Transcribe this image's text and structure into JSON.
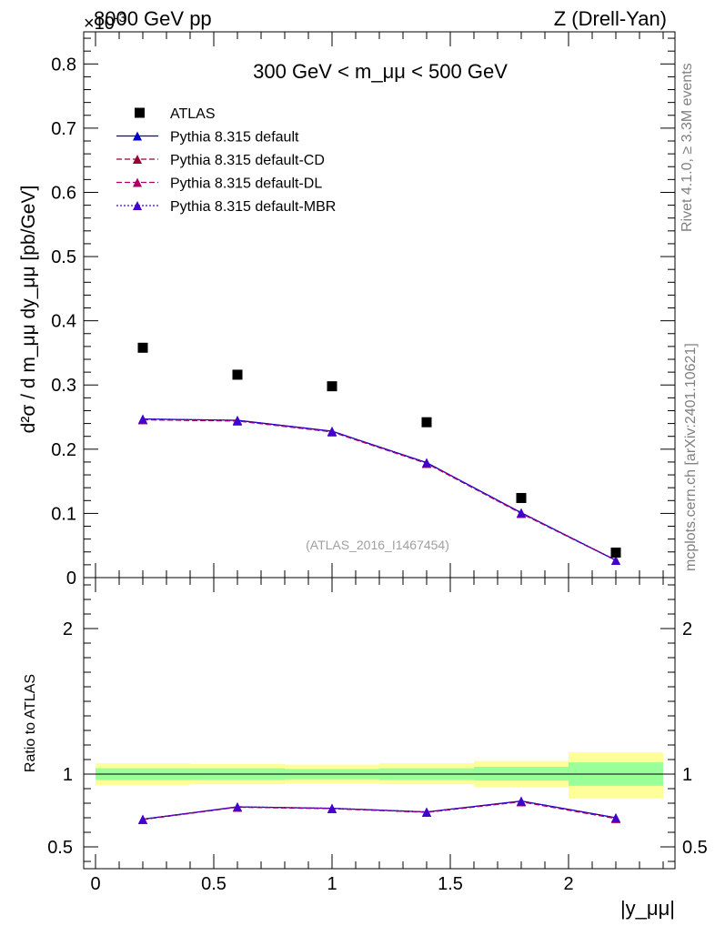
{
  "header": {
    "left": "8000 GeV pp",
    "right": "Z (Drell-Yan)",
    "exponent": "×10",
    "exponent_power": "-3"
  },
  "side_labels": {
    "rivet": "Rivet 4.1.0, ≥ 3.3M events",
    "mcplots": "mcplots.cern.ch [arXiv:2401.10621]"
  },
  "colors": {
    "data": "#000000",
    "default": "#0000cc",
    "default_cd": "#990033",
    "default_dl": "#aa0066",
    "default_mbr": "#4400cc",
    "band_inner": "#99ff99",
    "band_outer": "#ffff99"
  },
  "chart_data": [
    {
      "type": "scatter",
      "title": "300 GeV < m_μμ < 500 GeV",
      "watermark": "(ATLAS_2016_I1467454)",
      "ylabel": "d²σ / d m_μμ dy_μμ [pb/GeV]",
      "ylim": [
        0,
        0.00085
      ],
      "xlim": [
        -0.05,
        2.45
      ],
      "y_ticks": [
        "0",
        "0.1",
        "0.2",
        "0.3",
        "0.4",
        "0.5",
        "0.6",
        "0.7",
        "0.8"
      ],
      "x": [
        0.2,
        0.6,
        1.0,
        1.4,
        1.8,
        2.2
      ],
      "series": [
        {
          "name": "ATLAS",
          "marker": "square",
          "values": [
            0.000358,
            0.000316,
            0.000298,
            0.000242,
            0.000124,
            3.9e-05
          ]
        },
        {
          "name": "Pythia 8.315 default",
          "style": "solid",
          "values": [
            0.000247,
            0.000245,
            0.000228,
            0.000179,
            0.000101,
            2.7e-05
          ]
        },
        {
          "name": "Pythia 8.315 default-CD",
          "style": "dashed",
          "values": [
            0.000246,
            0.000244,
            0.000227,
            0.000178,
            0.0001,
            2.7e-05
          ]
        },
        {
          "name": "Pythia 8.315 default-DL",
          "style": "dashed",
          "values": [
            0.000246,
            0.000244,
            0.000227,
            0.000178,
            0.0001,
            2.7e-05
          ]
        },
        {
          "name": "Pythia 8.315 default-MBR",
          "style": "dotted",
          "values": [
            0.000247,
            0.000245,
            0.000228,
            0.000179,
            0.000101,
            2.7e-05
          ]
        }
      ]
    },
    {
      "type": "line",
      "ylabel": "Ratio to ATLAS",
      "xlabel": "|y_μμ|",
      "ylim": [
        0.35,
        2.35
      ],
      "y_ticks": [
        "0.5",
        "1",
        "2"
      ],
      "x_ticks": [
        "0",
        "0.5",
        "1",
        "1.5",
        "2"
      ],
      "bins": [
        [
          0.0,
          0.4
        ],
        [
          0.4,
          0.8
        ],
        [
          0.8,
          1.2
        ],
        [
          1.2,
          1.6
        ],
        [
          1.6,
          2.0
        ],
        [
          2.0,
          2.4
        ]
      ],
      "band_inner": [
        [
          0.96,
          1.04
        ],
        [
          0.96,
          1.04
        ],
        [
          0.965,
          1.035
        ],
        [
          0.96,
          1.04
        ],
        [
          0.955,
          1.05
        ],
        [
          0.92,
          1.08
        ]
      ],
      "band_outer": [
        [
          0.925,
          1.075
        ],
        [
          0.93,
          1.07
        ],
        [
          0.935,
          1.065
        ],
        [
          0.93,
          1.075
        ],
        [
          0.91,
          1.09
        ],
        [
          0.83,
          1.15
        ]
      ],
      "x": [
        0.2,
        0.6,
        1.0,
        1.4,
        1.8,
        2.2
      ],
      "series": [
        {
          "name": "Pythia 8.315 default",
          "values": [
            0.69,
            0.775,
            0.765,
            0.74,
            0.815,
            0.7
          ]
        },
        {
          "name": "Pythia 8.315 default-CD",
          "values": [
            0.688,
            0.773,
            0.763,
            0.738,
            0.81,
            0.695
          ]
        },
        {
          "name": "Pythia 8.315 default-DL",
          "values": [
            0.688,
            0.773,
            0.763,
            0.738,
            0.81,
            0.695
          ]
        },
        {
          "name": "Pythia 8.315 default-MBR",
          "values": [
            0.69,
            0.775,
            0.765,
            0.74,
            0.815,
            0.7
          ]
        }
      ]
    }
  ]
}
